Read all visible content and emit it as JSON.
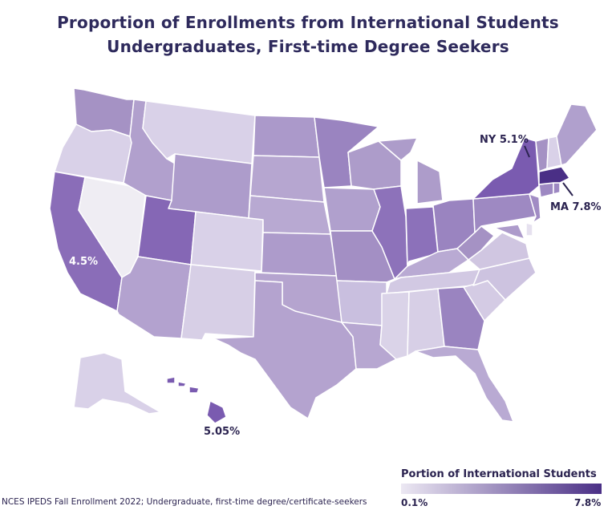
{
  "title": {
    "line1": "Proportion of Enrollments from International Students",
    "line2": "Undergraduates, First-time Degree Seekers"
  },
  "callouts": {
    "ny": "NY 5.1%",
    "ma": "MA 7.8%",
    "ca": "4.5%",
    "hi": "5.05%"
  },
  "legend": {
    "title": "Portion of International Students",
    "min": "0.1%",
    "max": "7.8%",
    "color_low": "#ece8f3",
    "color_high": "#4a2f86"
  },
  "source": "NCES IPEDS Fall Enrollment 2022; Undergraduate, first-time degree/certificate-seekers",
  "map_data": {
    "shown_values": {
      "NY": 5.1,
      "MA": 7.8,
      "CA": 4.5,
      "HI": 5.05
    },
    "range": [
      0.1,
      7.8
    ]
  }
}
